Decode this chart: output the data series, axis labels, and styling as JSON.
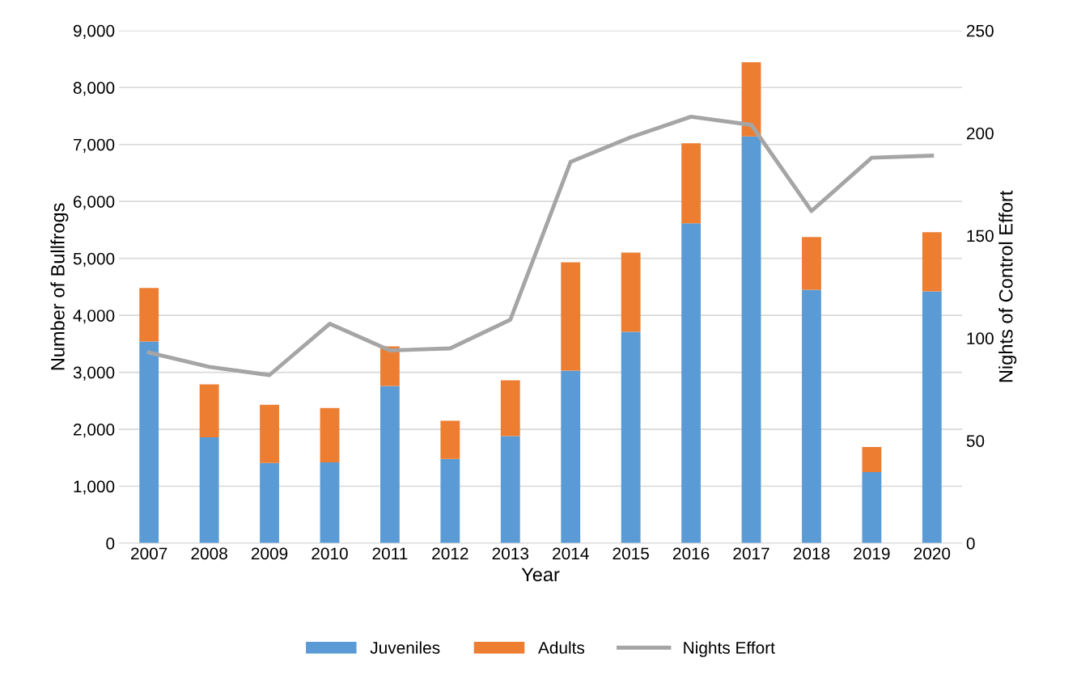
{
  "chart_data": {
    "type": "bar",
    "stacked": true,
    "xlabel": "Year",
    "ylabel": "Number of Bullfrogs",
    "y2label": "Nights of Control Effort",
    "categories": [
      "2007",
      "2008",
      "2009",
      "2010",
      "2011",
      "2012",
      "2013",
      "2014",
      "2015",
      "2016",
      "2017",
      "2018",
      "2019",
      "2020"
    ],
    "series": [
      {
        "name": "Juveniles",
        "color": "#5b9bd5",
        "values": [
          3540,
          1860,
          1410,
          1420,
          2760,
          1480,
          1880,
          3030,
          3710,
          5615,
          7140,
          4450,
          1250,
          4420
        ]
      },
      {
        "name": "Adults",
        "color": "#ed7d31",
        "values": [
          940,
          930,
          1020,
          955,
          695,
          670,
          980,
          1900,
          1390,
          1405,
          1305,
          925,
          440,
          1040
        ]
      },
      {
        "name": "Nights Effort",
        "type": "line",
        "axis": "y2",
        "color": "#a5a5a5",
        "values": [
          93,
          86,
          82,
          107,
          94,
          95,
          109,
          186,
          198,
          208,
          204,
          162,
          188,
          189
        ]
      }
    ],
    "ylim": [
      0,
      9000
    ],
    "yticks": [
      {
        "value": 0,
        "label": "0"
      },
      {
        "value": 1000,
        "label": "1,000"
      },
      {
        "value": 2000,
        "label": "2,000"
      },
      {
        "value": 3000,
        "label": "3,000"
      },
      {
        "value": 4000,
        "label": "4,000"
      },
      {
        "value": 5000,
        "label": "5,000"
      },
      {
        "value": 6000,
        "label": "6,000"
      },
      {
        "value": 7000,
        "label": "7,000"
      },
      {
        "value": 8000,
        "label": "8,000"
      },
      {
        "value": 9000,
        "label": "9,000"
      }
    ],
    "y2lim": [
      0,
      250
    ],
    "y2ticks": [
      0,
      50,
      100,
      150,
      200,
      250
    ],
    "grid": "y",
    "legend": "bottom",
    "marker": "none",
    "line_style": "solid"
  }
}
